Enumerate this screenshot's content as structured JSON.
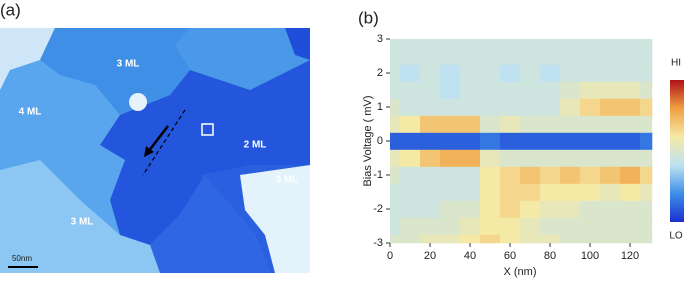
{
  "chart_data": [
    {
      "type": "image",
      "panel_label": "(a)",
      "annotations": [
        "3 ML",
        "4 ML",
        "2 ML",
        "3 ML",
        "3 ML"
      ],
      "scale_bar": "50nm"
    },
    {
      "type": "heatmap",
      "panel_label": "(b)",
      "x_label": "X (nm)",
      "y_label": "Bias Voltage ( mV)",
      "x": [
        0,
        10,
        20,
        30,
        40,
        50,
        60,
        70,
        80,
        90,
        100,
        110,
        120,
        130
      ],
      "y": [
        -3,
        -2.5,
        -2,
        -1.5,
        -1,
        -0.5,
        0,
        0.5,
        1,
        1.5,
        2,
        2.5,
        3
      ],
      "z": [
        [
          0.5,
          0.5,
          0.55,
          0.55,
          0.6,
          0.65,
          0.6,
          0.55,
          0.55,
          0.5,
          0.5,
          0.5,
          0.5,
          0.5
        ],
        [
          0.45,
          0.5,
          0.5,
          0.5,
          0.55,
          0.6,
          0.6,
          0.55,
          0.5,
          0.5,
          0.5,
          0.5,
          0.5,
          0.5
        ],
        [
          0.45,
          0.45,
          0.45,
          0.5,
          0.5,
          0.6,
          0.65,
          0.6,
          0.55,
          0.55,
          0.5,
          0.5,
          0.5,
          0.5
        ],
        [
          0.45,
          0.45,
          0.45,
          0.45,
          0.45,
          0.6,
          0.65,
          0.65,
          0.6,
          0.6,
          0.6,
          0.55,
          0.6,
          0.55
        ],
        [
          0.5,
          0.45,
          0.45,
          0.45,
          0.45,
          0.6,
          0.65,
          0.7,
          0.65,
          0.7,
          0.65,
          0.7,
          0.75,
          0.65
        ],
        [
          0.55,
          0.6,
          0.7,
          0.75,
          0.75,
          0.55,
          0.5,
          0.5,
          0.5,
          0.5,
          0.5,
          0.5,
          0.5,
          0.5
        ],
        [
          0.1,
          0.1,
          0.1,
          0.1,
          0.1,
          0.15,
          0.1,
          0.1,
          0.1,
          0.1,
          0.1,
          0.1,
          0.1,
          0.15
        ],
        [
          0.55,
          0.6,
          0.7,
          0.7,
          0.7,
          0.5,
          0.55,
          0.5,
          0.5,
          0.5,
          0.5,
          0.5,
          0.5,
          0.5
        ],
        [
          0.5,
          0.45,
          0.45,
          0.45,
          0.45,
          0.45,
          0.45,
          0.45,
          0.45,
          0.55,
          0.65,
          0.7,
          0.7,
          0.65
        ],
        [
          0.45,
          0.45,
          0.45,
          0.4,
          0.45,
          0.45,
          0.45,
          0.45,
          0.45,
          0.5,
          0.55,
          0.55,
          0.55,
          0.5
        ],
        [
          0.45,
          0.4,
          0.45,
          0.4,
          0.45,
          0.45,
          0.4,
          0.45,
          0.4,
          0.45,
          0.45,
          0.45,
          0.45,
          0.45
        ],
        [
          0.45,
          0.45,
          0.45,
          0.45,
          0.45,
          0.45,
          0.45,
          0.45,
          0.45,
          0.45,
          0.45,
          0.45,
          0.45,
          0.45
        ],
        [
          0.45,
          0.45,
          0.45,
          0.45,
          0.45,
          0.45,
          0.45,
          0.45,
          0.45,
          0.45,
          0.45,
          0.45,
          0.45,
          0.45
        ]
      ],
      "colormap": [
        "#1a2fd0",
        "#3d8fe8",
        "#bfe2f2",
        "#f5e9a6",
        "#f0a040",
        "#b0101a"
      ],
      "xlim": [
        0,
        131
      ],
      "xticks": [
        0,
        20,
        40,
        60,
        80,
        100,
        120
      ],
      "ylim": [
        -3,
        3
      ],
      "yticks": [
        -3,
        -2,
        -1,
        0,
        1,
        2,
        3
      ],
      "colorbar_high": "HI",
      "colorbar_low": "LO"
    }
  ]
}
